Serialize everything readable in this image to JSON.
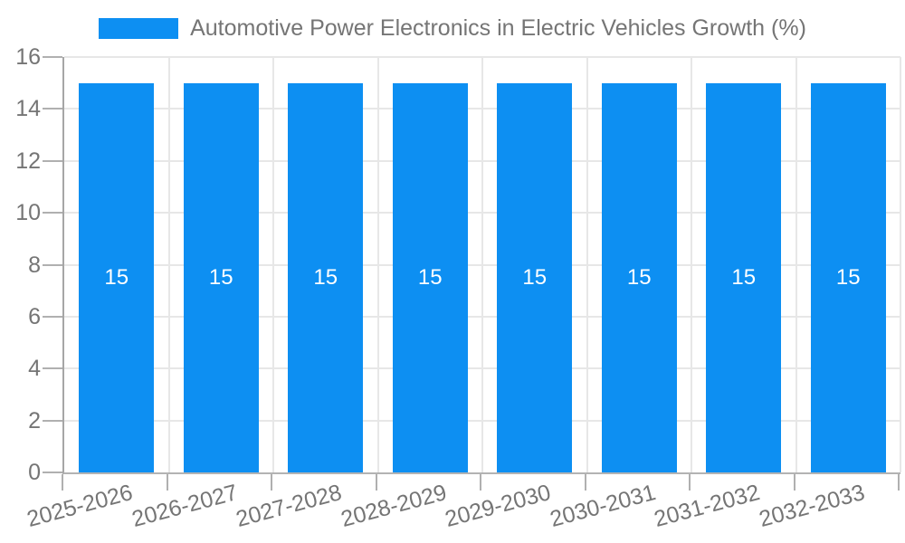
{
  "legend": {
    "swatch_color": "#0d8ff2"
  },
  "colors": {
    "bar": "#0d8ff2",
    "bar_label": "#ffffff",
    "grid_line": "#e7e7e7",
    "axis_line": "#a6a6a6",
    "tick_mark": "#b0b0b0",
    "tick_label": "#757575",
    "background": "#ffffff"
  },
  "chart_data": {
    "type": "bar",
    "title": "Automotive Power Electronics in Electric Vehicles Growth (%)",
    "categories": [
      "2025-2026",
      "2026-2027",
      "2027-2028",
      "2028-2029",
      "2029-2030",
      "2030-2031",
      "2031-2032",
      "2032-2033"
    ],
    "values": [
      15,
      15,
      15,
      15,
      15,
      15,
      15,
      15
    ],
    "bar_labels": [
      "15",
      "15",
      "15",
      "15",
      "15",
      "15",
      "15",
      "15"
    ],
    "xlabel": "",
    "ylabel": "",
    "ylim": [
      0,
      16
    ],
    "yticks": [
      0,
      2,
      4,
      6,
      8,
      10,
      12,
      14,
      16
    ],
    "grid": true,
    "legend_position": "top",
    "x_tick_rotation_deg": -15
  }
}
